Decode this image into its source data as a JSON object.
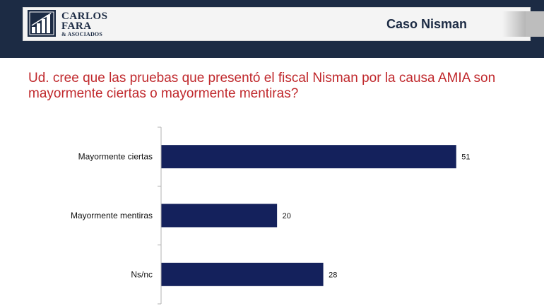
{
  "header": {
    "logo_lines": [
      "CARLOS",
      "FARA",
      "& ASOCIADOS"
    ],
    "title": "Caso Nisman"
  },
  "question": "Ud. cree que las pruebas que presentó el fiscal Nisman por la causa AMIA son mayormente ciertas o mayormente mentiras?",
  "colors": {
    "bar": "#14215c",
    "question": "#c0282c",
    "header": "#1c2b44"
  },
  "chart_data": {
    "type": "bar",
    "orientation": "horizontal",
    "categories": [
      "Mayormente ciertas",
      "Mayormente mentiras",
      "Ns/nc"
    ],
    "values": [
      51,
      20,
      28
    ],
    "xlim": [
      0,
      55
    ],
    "grid": false
  }
}
